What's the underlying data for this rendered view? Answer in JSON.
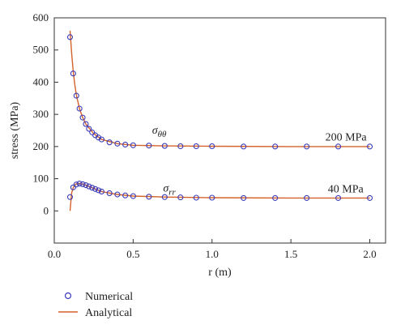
{
  "chart_data": {
    "type": "line",
    "xlabel": "r (m)",
    "ylabel": "stress (MPa)",
    "xlim": [
      0,
      2.1
    ],
    "ylim": [
      -100,
      600
    ],
    "xticks": [
      0.0,
      0.5,
      1.0,
      1.5,
      2.0
    ],
    "xtick_labels": [
      "0.0",
      "0.5",
      "1.0",
      "1.5",
      "2.0"
    ],
    "yticks": [
      0,
      100,
      200,
      300,
      400,
      500,
      600
    ],
    "ytick_labels": [
      "0",
      "100",
      "200",
      "300",
      "400",
      "500",
      "600"
    ],
    "grid": false,
    "legend_position": "below-left",
    "annotations": {
      "theta_label_main": "σ",
      "theta_label_sub": "θθ",
      "theta_value": "200 MPa",
      "rr_label_main": "σ",
      "rr_label_sub": "rr",
      "rr_value": "40 MPa"
    },
    "series": [
      {
        "name": "Numerical",
        "marker": "circle",
        "color": "#3b3bb8",
        "curves": [
          {
            "curve": "theta",
            "x": [
              0.1,
              0.12,
              0.14,
              0.16,
              0.18,
              0.2,
              0.22,
              0.24,
              0.26,
              0.28,
              0.3,
              0.35,
              0.4,
              0.45,
              0.5,
              0.6,
              0.7,
              0.8,
              0.9,
              1.0,
              1.2,
              1.4,
              1.6,
              1.8,
              2.0
            ],
            "y": [
              540,
              427,
              358,
              318,
              290,
              270,
              255,
              244,
              235,
              228,
              222,
              213,
              209,
              206,
              204,
              203,
              202,
              201,
              201,
              201,
              200,
              200,
              200,
              200,
              200
            ]
          },
          {
            "curve": "rr",
            "x": [
              0.1,
              0.12,
              0.14,
              0.16,
              0.18,
              0.2,
              0.22,
              0.24,
              0.26,
              0.28,
              0.3,
              0.35,
              0.4,
              0.45,
              0.5,
              0.6,
              0.7,
              0.8,
              0.9,
              1.0,
              1.2,
              1.4,
              1.6,
              1.8,
              2.0
            ],
            "y": [
              43,
              73,
              82,
              85,
              83,
              80,
              76,
              72,
              68,
              64,
              60,
              55,
              51,
              48,
              46,
              44,
              43,
              42,
              41,
              41,
              40,
              40,
              40,
              40,
              40
            ]
          }
        ]
      },
      {
        "name": "Analytical",
        "marker": "line",
        "color": "#d4622a",
        "curves": [
          {
            "curve": "theta",
            "x": [
              0.1,
              0.11,
              0.12,
              0.13,
              0.14,
              0.16,
              0.18,
              0.2,
              0.25,
              0.3,
              0.4,
              0.5,
              0.7,
              1.0,
              1.5,
              2.0
            ],
            "y": [
              560,
              492,
              433,
              393,
              360,
              317,
              290,
              270,
              240,
              222,
              209,
              204,
              202,
              201,
              200,
              200
            ]
          },
          {
            "curve": "rr",
            "x": [
              0.1,
              0.11,
              0.12,
              0.13,
              0.14,
              0.16,
              0.18,
              0.2,
              0.25,
              0.3,
              0.4,
              0.5,
              0.7,
              1.0,
              1.5,
              2.0
            ],
            "y": [
              0,
              55,
              72,
              80,
              84,
              85,
              83,
              80,
              70,
              60,
              51,
              46,
              43,
              41,
              40,
              40
            ]
          }
        ]
      }
    ]
  }
}
